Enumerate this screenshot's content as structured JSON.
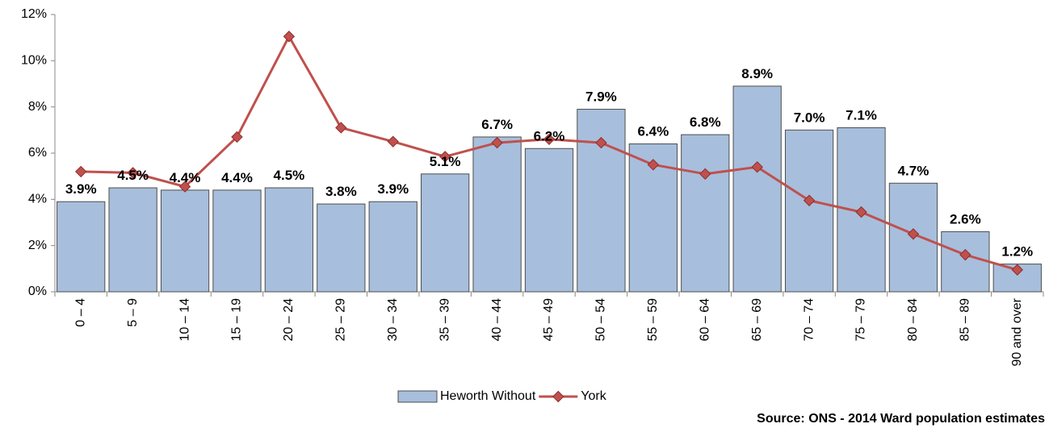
{
  "chart_data": {
    "type": "combo",
    "source": "Source: ONS - 2014 Ward population estimates",
    "categories": [
      "0 – 4",
      "5 – 9",
      "10 – 14",
      "15 – 19",
      "20 – 24",
      "25 – 29",
      "30 – 34",
      "35 – 39",
      "40 – 44",
      "45 – 49",
      "50 – 54",
      "55 – 59",
      "60 – 64",
      "65 – 69",
      "70 – 74",
      "75 – 79",
      "80 – 84",
      "85 – 89",
      "90 and over"
    ],
    "series": [
      {
        "name": "Heworth Without",
        "type": "bar",
        "color": "#a7bfdc",
        "values": [
          3.9,
          4.5,
          4.4,
          4.4,
          4.5,
          3.8,
          3.9,
          5.1,
          6.7,
          6.2,
          7.9,
          6.4,
          6.8,
          8.9,
          7.0,
          7.1,
          4.7,
          2.6,
          1.2
        ],
        "value_labels": [
          "3.9%",
          "4.5%",
          "4.4%",
          "4.4%",
          "4.5%",
          "3.8%",
          "3.9%",
          "5.1%",
          "6.7%",
          "6.2%",
          "7.9%",
          "6.4%",
          "6.8%",
          "8.9%",
          "7.0%",
          "7.1%",
          "4.7%",
          "2.6%",
          "1.2%"
        ]
      },
      {
        "name": "York",
        "type": "line",
        "color": "#c0504d",
        "values": [
          5.2,
          5.15,
          4.55,
          6.7,
          11.05,
          7.1,
          6.5,
          5.85,
          6.45,
          6.6,
          6.45,
          5.5,
          5.1,
          5.4,
          3.95,
          3.45,
          2.5,
          1.6,
          0.95
        ]
      }
    ],
    "ylim": [
      0,
      12
    ],
    "yticks": [
      {
        "value": 0,
        "label": "0%"
      },
      {
        "value": 2,
        "label": "2%"
      },
      {
        "value": 4,
        "label": "4%"
      },
      {
        "value": 6,
        "label": "6%"
      },
      {
        "value": 8,
        "label": "8%"
      },
      {
        "value": 10,
        "label": "10%"
      },
      {
        "value": 12,
        "label": "12%"
      }
    ],
    "legend": "bottom"
  }
}
